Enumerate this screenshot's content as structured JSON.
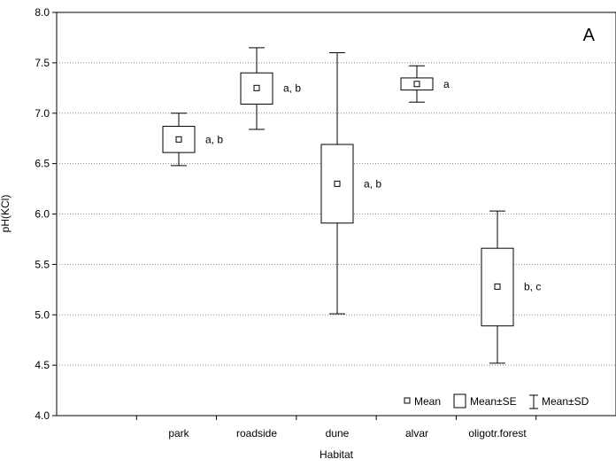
{
  "chart_data": {
    "type": "boxplot",
    "panel_label": "A",
    "xlabel": "Habitat",
    "ylabel": "pH(KCl)",
    "ylim": [
      4.0,
      8.0
    ],
    "y_ticks": [
      "4.0",
      "4.5",
      "5.0",
      "5.5",
      "6.0",
      "6.5",
      "7.0",
      "7.5",
      "8.0"
    ],
    "y_tick_values": [
      4.0,
      4.5,
      5.0,
      5.5,
      6.0,
      6.5,
      7.0,
      7.5,
      8.0
    ],
    "grid": "horizontal-dotted",
    "legend_position": "bottom-right",
    "legend": {
      "mean": "Mean",
      "se": "Mean±SE",
      "sd": "Mean±SD"
    },
    "categories": [
      "park",
      "roadside",
      "dune",
      "alvar",
      "oligotr.forest"
    ],
    "series": [
      {
        "category": "park",
        "mean": 6.74,
        "se_low": 6.61,
        "se_high": 6.87,
        "sd_low": 6.48,
        "sd_high": 7.0,
        "group_letters": "a, b"
      },
      {
        "category": "roadside",
        "mean": 7.25,
        "se_low": 7.09,
        "se_high": 7.4,
        "sd_low": 6.84,
        "sd_high": 7.65,
        "group_letters": "a, b"
      },
      {
        "category": "dune",
        "mean": 6.3,
        "se_low": 5.91,
        "se_high": 6.69,
        "sd_low": 5.01,
        "sd_high": 7.6,
        "group_letters": "a, b"
      },
      {
        "category": "alvar",
        "mean": 7.29,
        "se_low": 7.23,
        "se_high": 7.35,
        "sd_low": 7.11,
        "sd_high": 7.47,
        "group_letters": "a"
      },
      {
        "category": "oligotr.forest",
        "mean": 5.28,
        "se_low": 4.89,
        "se_high": 5.66,
        "sd_low": 4.52,
        "sd_high": 6.03,
        "group_letters": "b, c"
      }
    ]
  }
}
